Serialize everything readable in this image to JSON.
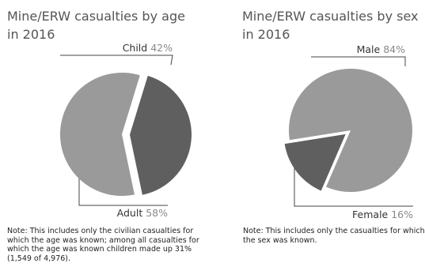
{
  "chart_data": [
    {
      "type": "pie",
      "title": "Mine/ERW casualties by age in 2016",
      "title_lines": [
        "Mine/ERW casualties by age",
        "in 2016"
      ],
      "slices": [
        {
          "label": "Child",
          "value": 42,
          "display": "42%",
          "color": "#5f5f5f"
        },
        {
          "label": "Adult",
          "value": 58,
          "display": "58%",
          "color": "#9a9a9a"
        }
      ],
      "note": "Note: This includes only the civilian casualties for which the age was known; among all casualties for which the age was known children made up 31% (1,549 of 4,976)."
    },
    {
      "type": "pie",
      "title": "Mine/ERW casualties by sex in 2016",
      "title_lines": [
        "Mine/ERW casualties by sex",
        "in 2016"
      ],
      "slices": [
        {
          "label": "Male",
          "value": 84,
          "display": "84%",
          "color": "#9a9a9a"
        },
        {
          "label": "Female",
          "value": 16,
          "display": "16%",
          "color": "#5f5f5f"
        }
      ],
      "note": "Note: This includes only the casualties for which the sex was known."
    }
  ]
}
